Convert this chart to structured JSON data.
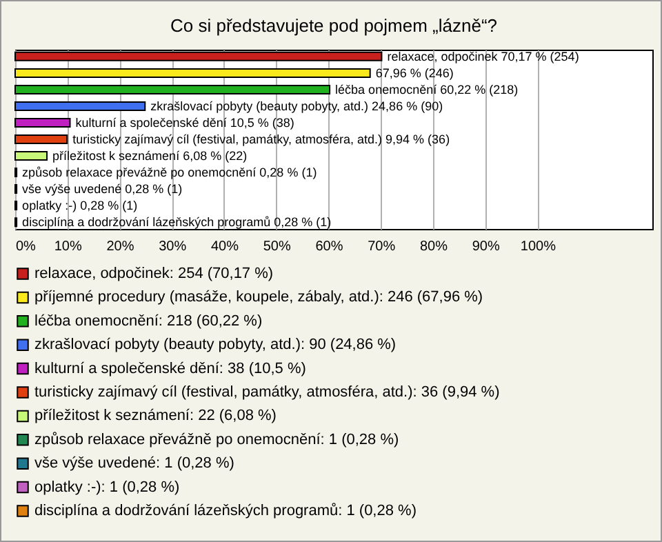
{
  "chart_data": {
    "type": "bar",
    "orientation": "horizontal",
    "stacked": true,
    "title": "Co si představujete pod pojmem „lázně“?",
    "categories": [
      null,
      null,
      null,
      null,
      null,
      null,
      null,
      null,
      null,
      null,
      null
    ],
    "series": [
      {
        "name": "relaxace, odpočinek: 254 (70,17 %)",
        "color": "#c8201c",
        "values": [
          70.17,
          null,
          null,
          null,
          null,
          null,
          null,
          null,
          null,
          null,
          null
        ],
        "value_labels": [
          "relaxace, odpočinek 70,17 % (254)",
          null,
          null,
          null,
          null,
          null,
          null,
          null,
          null,
          null,
          null
        ]
      },
      {
        "name": "příjemné procedury (masáže, koupele, zábaly, atd.): 246 (67,96 %)",
        "color": "#f8e81c",
        "values": [
          null,
          67.96,
          null,
          null,
          null,
          null,
          null,
          null,
          null,
          null,
          null
        ],
        "value_labels": [
          null,
          "67,96 % (246)",
          null,
          null,
          null,
          null,
          null,
          null,
          null,
          null,
          null
        ]
      },
      {
        "name": "léčba onemocnění: 218 (60,22 %)",
        "color": "#20b020",
        "values": [
          null,
          null,
          60.22,
          null,
          null,
          null,
          null,
          null,
          null,
          null,
          null
        ],
        "value_labels": [
          null,
          null,
          "léčba onemocnění 60,22 % (218)",
          null,
          null,
          null,
          null,
          null,
          null,
          null,
          null
        ]
      },
      {
        "name": "zkrašlovací pobyty (beauty pobyty, atd.): 90 (24,86 %)",
        "color": "#4070f0",
        "values": [
          null,
          null,
          null,
          24.86,
          null,
          null,
          null,
          null,
          null,
          null,
          null
        ],
        "value_labels": [
          null,
          null,
          null,
          "zkrašlovací pobyty (beauty pobyty, atd.) 24,86 % (90)",
          null,
          null,
          null,
          null,
          null,
          null,
          null
        ]
      },
      {
        "name": "kulturní a společenské dění: 38 (10,5 %)",
        "color": "#c020c0",
        "values": [
          null,
          null,
          null,
          null,
          10.5,
          null,
          null,
          null,
          null,
          null,
          null
        ],
        "value_labels": [
          null,
          null,
          null,
          null,
          "kulturní a společenské dění 10,5 % (38)",
          null,
          null,
          null,
          null,
          null,
          null
        ]
      },
      {
        "name": "turisticky zajímavý cíl (festival, památky, atmosféra, atd.): 36 (9,94 %)",
        "color": "#e04010",
        "values": [
          null,
          null,
          null,
          null,
          null,
          9.94,
          null,
          null,
          null,
          null,
          null
        ],
        "value_labels": [
          null,
          null,
          null,
          null,
          null,
          "turisticky zajímavý cíl (festival, památky, atmosféra, atd.) 9,94 % (36)",
          null,
          null,
          null,
          null,
          null
        ]
      },
      {
        "name": "příležitost k seznámení: 22 (6,08 %)",
        "color": "#c8f878",
        "values": [
          null,
          null,
          null,
          null,
          null,
          null,
          6.08,
          null,
          null,
          null,
          null
        ],
        "value_labels": [
          null,
          null,
          null,
          null,
          null,
          null,
          "příležitost k seznámení 6,08 % (22)",
          null,
          null,
          null,
          null
        ]
      },
      {
        "name": "způsob relaxace převážně po onemocnění: 1 (0,28 %)",
        "color": "#208850",
        "values": [
          null,
          null,
          null,
          null,
          null,
          null,
          null,
          0.28,
          null,
          null,
          null
        ],
        "value_labels": [
          null,
          null,
          null,
          null,
          null,
          null,
          null,
          "způsob relaxace převážně po onemocnění 0,28 % (1)",
          null,
          null,
          null
        ]
      },
      {
        "name": "vše výše uvedené: 1 (0,28 %)",
        "color": "#207890",
        "values": [
          null,
          null,
          null,
          null,
          null,
          null,
          null,
          null,
          0.28,
          null,
          null
        ],
        "value_labels": [
          null,
          null,
          null,
          null,
          null,
          null,
          null,
          null,
          "vše výše uvedené 0,28 % (1)",
          null,
          null
        ]
      },
      {
        "name": "oplatky :-): 1 (0,28 %)",
        "color": "#c060c0",
        "values": [
          null,
          null,
          null,
          null,
          null,
          null,
          null,
          null,
          null,
          0.28,
          null
        ],
        "value_labels": [
          null,
          null,
          null,
          null,
          null,
          null,
          null,
          null,
          null,
          "oplatky :-) 0,28 % (1)",
          null
        ]
      },
      {
        "name": "disciplína a dodržování lázeňských programů: 1 (0,28 %)",
        "color": "#e08010",
        "values": [
          null,
          null,
          null,
          null,
          null,
          null,
          null,
          null,
          null,
          null,
          0.28
        ],
        "value_labels": [
          null,
          null,
          null,
          null,
          null,
          null,
          null,
          null,
          null,
          null,
          "disciplína a dodržování lázeňských programů 0,28 % (1)"
        ]
      }
    ],
    "xlim": [
      0,
      122
    ],
    "xticks": [
      {
        "value": 0,
        "label": "0%"
      },
      {
        "value": 10,
        "label": "10%"
      },
      {
        "value": 20,
        "label": "20%"
      },
      {
        "value": 30,
        "label": "30%"
      },
      {
        "value": 40,
        "label": "40%"
      },
      {
        "value": 50,
        "label": "50%"
      },
      {
        "value": 60,
        "label": "60%"
      },
      {
        "value": 70,
        "label": "70%"
      },
      {
        "value": 80,
        "label": "80%"
      },
      {
        "value": 90,
        "label": "90%"
      },
      {
        "value": 100,
        "label": "100%"
      }
    ],
    "grid": "x",
    "legend": "bottom",
    "tick_labels": "x"
  }
}
